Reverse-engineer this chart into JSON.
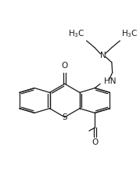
{
  "bg_color": "#ffffff",
  "line_color": "#1a1a1a",
  "font_size": 7.5,
  "fig_width": 1.79,
  "fig_height": 2.34,
  "dpi": 100,
  "xlim": [
    0,
    10
  ],
  "ylim": [
    0,
    13
  ]
}
